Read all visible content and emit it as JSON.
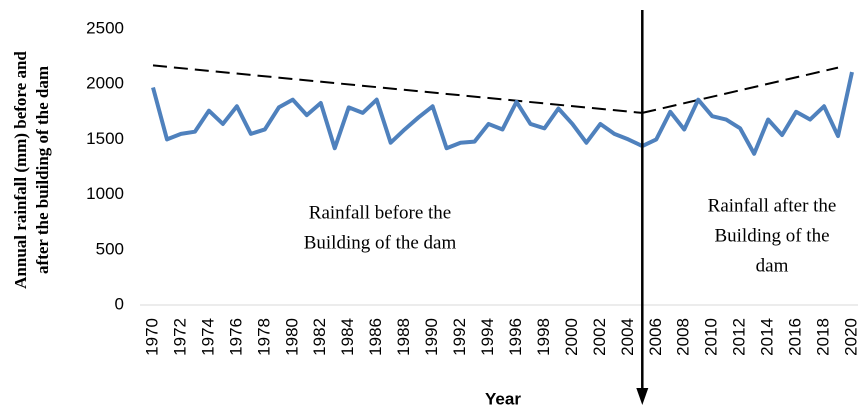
{
  "chart_data": {
    "type": "line",
    "x_label": "Year",
    "y_label": [
      "Annual rainfall (mm) before and",
      "after the building of the dam"
    ],
    "x": [
      1970,
      1971,
      1972,
      1973,
      1974,
      1975,
      1976,
      1977,
      1978,
      1979,
      1980,
      1981,
      1982,
      1983,
      1984,
      1985,
      1986,
      1987,
      1988,
      1989,
      1990,
      1991,
      1992,
      1993,
      1994,
      1995,
      1996,
      1997,
      1998,
      1999,
      2000,
      2001,
      2002,
      2003,
      2004,
      2005,
      2006,
      2007,
      2008,
      2009,
      2010,
      2011,
      2012,
      2013,
      2014,
      2015,
      2016,
      2017,
      2018,
      2019,
      2020
    ],
    "values": [
      1970,
      1500,
      1550,
      1570,
      1760,
      1640,
      1800,
      1550,
      1590,
      1790,
      1860,
      1720,
      1830,
      1420,
      1790,
      1740,
      1860,
      1470,
      1590,
      1700,
      1800,
      1420,
      1470,
      1480,
      1640,
      1590,
      1840,
      1640,
      1600,
      1780,
      1640,
      1470,
      1640,
      1550,
      1500,
      1440,
      1500,
      1750,
      1590,
      1860,
      1710,
      1680,
      1600,
      1370,
      1680,
      1540,
      1750,
      1680,
      1800,
      1530,
      2110
    ],
    "color": "#4f81bd",
    "trend_lines": [
      {
        "x": [
          1970,
          2005
        ],
        "values": [
          2170,
          1740
        ]
      },
      {
        "x": [
          2005,
          2019
        ],
        "values": [
          1740,
          2150
        ]
      }
    ],
    "divider_x": 2005,
    "annotations": [
      [
        "Rainfall before the",
        "Building of the dam"
      ],
      [
        "Rainfall after the",
        "Building of the",
        "dam"
      ]
    ],
    "xlim": [
      1970,
      2020
    ],
    "xticks": [
      1970,
      1972,
      1974,
      1976,
      1978,
      1980,
      1982,
      1984,
      1986,
      1988,
      1990,
      1992,
      1994,
      1996,
      1998,
      2000,
      2002,
      2004,
      2006,
      2008,
      2010,
      2012,
      2014,
      2016,
      2018,
      2020
    ],
    "ylim": [
      0,
      2500
    ],
    "yticks": [
      0,
      500,
      1000,
      1500,
      2000,
      2500
    ]
  }
}
